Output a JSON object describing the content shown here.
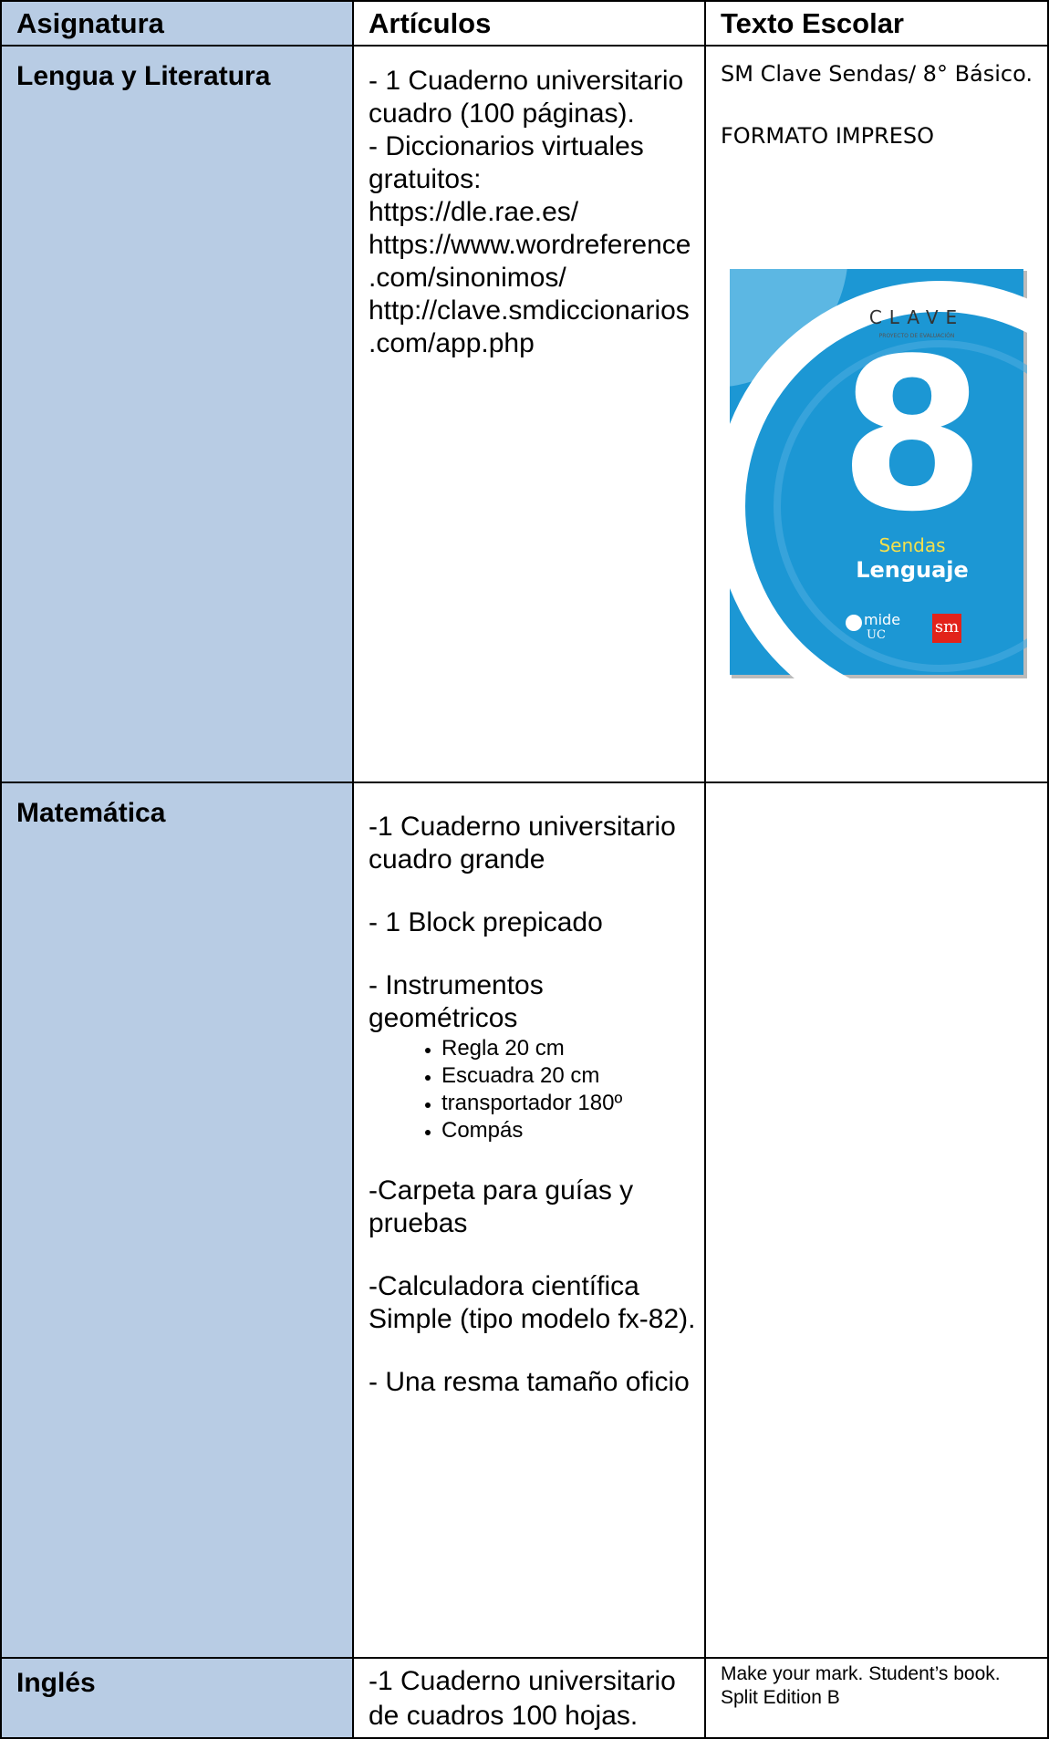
{
  "table": {
    "headers": [
      "Asignatura",
      "Artículos",
      "Texto Escolar"
    ],
    "rows": [
      {
        "subject": "Lengua y Literatura",
        "items": [
          "- 1 Cuaderno universitario  cuadro (100 páginas).",
          "- Diccionarios virtuales gratuitos:",
          "https://dle.rae.es/",
          "https://www.wordreference.com/sinonimos/",
          "http://clave.smdiccionarios.com/app.php"
        ],
        "book": [
          "SM Clave Sendas/ 8° Básico.",
          "FORMATO IMPRESO"
        ]
      },
      {
        "subject": "Matemática",
        "items": [
          "-1 Cuaderno universitario cuadro grande",
          "- 1 Block prepicado",
          "- Instrumentos geométricos",
          "-Carpeta para guías y pruebas",
          "-Calculadora científica Simple (tipo modelo fx-82).",
          "- Una resma tamaño oficio"
        ],
        "bullets": [
          "Regla 20 cm",
          "Escuadra 20 cm",
          "transportador 180º",
          "Compás"
        ]
      },
      {
        "subject": "Inglés",
        "items": [
          "-1 Cuaderno universitario de cuadros 100 hojas."
        ],
        "book": [
          "Make your mark. Student’s book. Split Edition B"
        ]
      }
    ]
  },
  "cover": {
    "brand": "CLAVE",
    "tagline": "PROYECTO DE EVALUACIÓN",
    "number": "8",
    "series": "Sendas",
    "subject": "Lenguaje",
    "partner": "mide",
    "partner_sub": "UC",
    "publisher": "sm"
  }
}
